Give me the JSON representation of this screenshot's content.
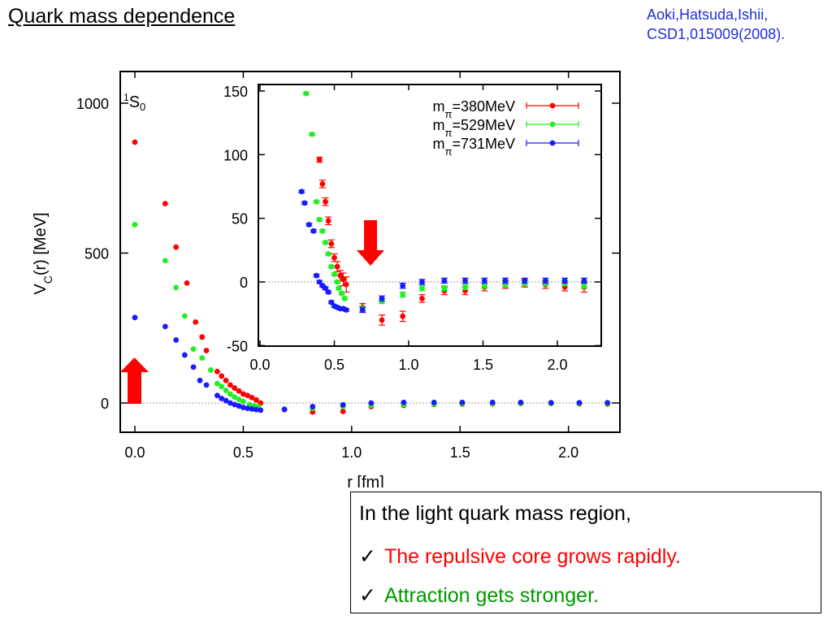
{
  "slide": {
    "title": "Quark mass dependence",
    "citation_line1": "Aoki,Hatsuda,Ishii,",
    "citation_line2": "CSD1,015009(2008).",
    "citation_color": "#1f2fd8"
  },
  "notes": {
    "intro": "In the light quark mass region,",
    "check_glyph": "✓",
    "point1": "The repulsive core grows rapidly.",
    "point1_color": "#ff0000",
    "point2": "Attraction gets stronger.",
    "point2_color": "#009900"
  },
  "chart_data": [
    {
      "type": "scatter",
      "name": "main",
      "channel_label": "1S0",
      "xlabel": "r [fm]",
      "ylabel": "V_C(r) [MeV]",
      "xlim": [
        0,
        2.3
      ],
      "ylim": [
        -100,
        1100
      ],
      "xticks": [
        {
          "value": 0.0,
          "label": "0.0"
        },
        {
          "value": 0.5,
          "label": "0.5"
        },
        {
          "value": 1.0,
          "label": "1.0"
        },
        {
          "value": 1.5,
          "label": "1.5"
        },
        {
          "value": 2.0,
          "label": "2.0"
        }
      ],
      "yticks": [
        {
          "value": 0,
          "label": "0"
        },
        {
          "value": 500,
          "label": "500"
        },
        {
          "value": 1000,
          "label": "1000"
        }
      ],
      "zero_line": true,
      "annotation": "red arrow pointing up",
      "series": [
        {
          "label": "m_π=380MeV",
          "color": "#ff0000",
          "x": [
            0.0,
            0.14,
            0.19,
            0.24,
            0.28,
            0.31,
            0.33,
            0.38,
            0.4,
            0.42,
            0.44,
            0.46,
            0.48,
            0.5,
            0.52,
            0.54,
            0.56,
            0.58,
            0.69,
            0.82,
            0.96,
            1.09,
            1.24,
            1.38,
            1.51,
            1.65,
            1.78,
            1.92,
            2.05,
            2.18
          ],
          "y": [
            870,
            665,
            520,
            400,
            270,
            220,
            175,
            105,
            90,
            75,
            60,
            50,
            40,
            30,
            25,
            18,
            10,
            0,
            -20,
            -30,
            -28,
            -12,
            -8,
            -5,
            -4,
            -3,
            -2,
            -2,
            -3,
            -4
          ]
        },
        {
          "label": "m_π=529MeV",
          "color": "#22ee22",
          "x": [
            0.0,
            0.14,
            0.19,
            0.23,
            0.27,
            0.31,
            0.35,
            0.38,
            0.4,
            0.42,
            0.44,
            0.46,
            0.48,
            0.5,
            0.53,
            0.55,
            0.57,
            0.69,
            0.82,
            0.96,
            1.09,
            1.24,
            1.38,
            1.51,
            1.65,
            1.78,
            1.92,
            2.05,
            2.18
          ],
          "y": [
            595,
            475,
            385,
            290,
            180,
            150,
            110,
            65,
            55,
            42,
            30,
            20,
            12,
            5,
            -5,
            -10,
            -12,
            -20,
            -18,
            -12,
            -8,
            -6,
            -4,
            -3,
            -2,
            -2,
            -2,
            -2,
            -3
          ]
        },
        {
          "label": "m_π=731MeV",
          "color": "#1a1aff",
          "x": [
            0.0,
            0.14,
            0.19,
            0.23,
            0.27,
            0.3,
            0.33,
            0.38,
            0.4,
            0.42,
            0.44,
            0.46,
            0.48,
            0.5,
            0.52,
            0.54,
            0.56,
            0.58,
            0.69,
            0.82,
            0.96,
            1.09,
            1.24,
            1.38,
            1.51,
            1.65,
            1.78,
            1.92,
            2.05,
            2.18
          ],
          "y": [
            285,
            255,
            210,
            160,
            120,
            75,
            60,
            25,
            15,
            8,
            0,
            -5,
            -10,
            -15,
            -18,
            -20,
            -22,
            -24,
            -22,
            -12,
            -6,
            0,
            2,
            2,
            2,
            2,
            2,
            1,
            1,
            1
          ]
        }
      ]
    },
    {
      "type": "scatter",
      "name": "inset",
      "xlim": [
        0,
        2.3
      ],
      "ylim": [
        -50,
        150
      ],
      "xticks": [
        {
          "value": 0.0,
          "label": "0.0"
        },
        {
          "value": 0.5,
          "label": "0.5"
        },
        {
          "value": 1.0,
          "label": "1.0"
        },
        {
          "value": 1.5,
          "label": "1.5"
        },
        {
          "value": 2.0,
          "label": "2.0"
        }
      ],
      "yticks": [
        {
          "value": -50,
          "label": "-50"
        },
        {
          "value": 0,
          "label": "0"
        },
        {
          "value": 50,
          "label": "50"
        },
        {
          "value": 100,
          "label": "100"
        },
        {
          "value": 150,
          "label": "150"
        }
      ],
      "zero_line": true,
      "legend_position": "top-right",
      "annotation": "red arrow pointing down",
      "series": [
        {
          "label": "m_π=380MeV",
          "color": "#ff0000",
          "x": [
            0.4,
            0.42,
            0.44,
            0.46,
            0.48,
            0.5,
            0.52,
            0.54,
            0.56,
            0.58,
            0.69,
            0.82,
            0.96,
            1.09,
            1.24,
            1.38,
            1.51,
            1.65,
            1.78,
            1.92,
            2.05,
            2.18
          ],
          "y": [
            96,
            77,
            63,
            48,
            30,
            19,
            12,
            5,
            2,
            -2,
            -20,
            -30,
            -27,
            -13,
            -7,
            -7,
            -4,
            -2,
            -1,
            -2,
            -4,
            -4
          ],
          "yerr": [
            2,
            3,
            3,
            3,
            3,
            3,
            4,
            4,
            5,
            6,
            3,
            4,
            4,
            3,
            3,
            3,
            3,
            3,
            3,
            3,
            3,
            4
          ]
        },
        {
          "label": "m_π=529MeV",
          "color": "#22ee22",
          "x": [
            0.31,
            0.35,
            0.38,
            0.4,
            0.42,
            0.44,
            0.46,
            0.48,
            0.5,
            0.52,
            0.53,
            0.55,
            0.57,
            0.69,
            0.82,
            0.96,
            1.09,
            1.24,
            1.38,
            1.51,
            1.65,
            1.78,
            1.92,
            2.05,
            2.18
          ],
          "y": [
            148,
            116,
            63,
            49,
            40,
            31,
            22,
            12,
            6,
            0,
            -5,
            -9,
            -13,
            -21,
            -15,
            -10,
            -5,
            -5,
            -4,
            -3,
            -2,
            -1,
            -1,
            -1,
            -3
          ],
          "yerr": [
            1,
            1,
            1,
            1,
            1,
            1,
            1,
            1,
            1,
            1,
            1,
            1,
            1,
            2,
            2,
            2,
            2,
            2,
            2,
            2,
            2,
            2,
            2,
            2,
            2
          ]
        },
        {
          "label": "m_π=731MeV",
          "color": "#1a1aff",
          "x": [
            0.28,
            0.3,
            0.33,
            0.36,
            0.38,
            0.4,
            0.42,
            0.44,
            0.46,
            0.48,
            0.5,
            0.52,
            0.54,
            0.56,
            0.58,
            0.69,
            0.82,
            0.96,
            1.09,
            1.24,
            1.38,
            1.51,
            1.65,
            1.78,
            1.92,
            2.05,
            2.18
          ],
          "y": [
            71,
            62,
            45,
            40,
            5,
            0,
            -3,
            -5,
            -8,
            -16,
            -19,
            -20,
            -21,
            -21,
            -22,
            -22,
            -13,
            -3,
            0,
            1,
            1,
            1,
            1,
            1,
            1,
            1,
            1
          ],
          "yerr": [
            1,
            1,
            1,
            1,
            1,
            1,
            1,
            1,
            1,
            1,
            1,
            1,
            1,
            1,
            1,
            2,
            2,
            2,
            2,
            2,
            2,
            2,
            2,
            2,
            2,
            2,
            2
          ]
        }
      ]
    }
  ]
}
